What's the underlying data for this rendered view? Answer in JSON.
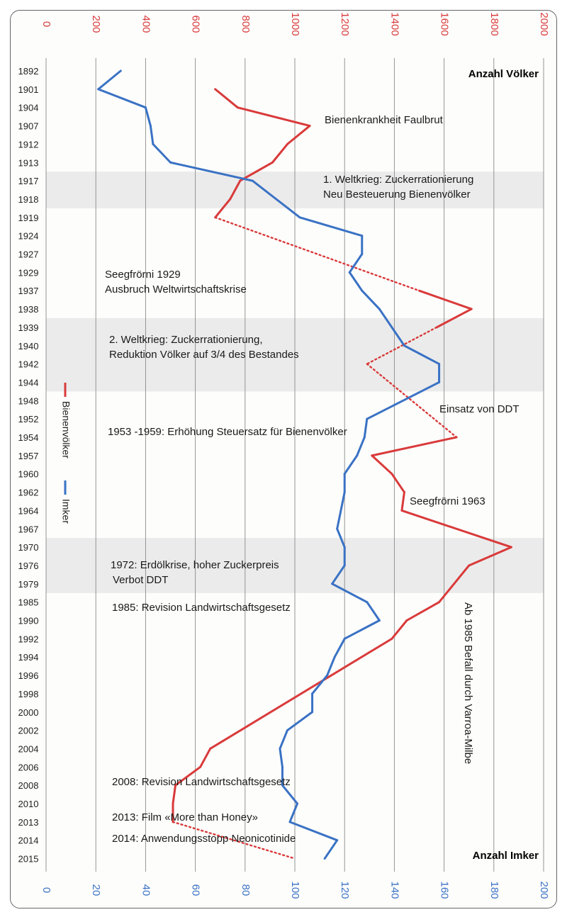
{
  "chart_data": {
    "type": "line",
    "top_axis": {
      "title": "Anzahl Völker",
      "range": [
        0,
        2000
      ],
      "ticks": [
        "0",
        "200",
        "400",
        "600",
        "800",
        "1000",
        "1200",
        "1400",
        "1600",
        "1800",
        "2000"
      ]
    },
    "bottom_axis": {
      "title": "Anzahl Imker",
      "range": [
        0,
        200
      ],
      "ticks": [
        "0",
        "20",
        "40",
        "60",
        "80",
        "100",
        "120",
        "140",
        "160",
        "180",
        "200"
      ]
    },
    "years": [
      "1892",
      "1901",
      "1904",
      "1907",
      "1912",
      "1913",
      "1917",
      "1918",
      "1919",
      "1924",
      "1927",
      "1929",
      "1937",
      "1938",
      "1939",
      "1940",
      "1942",
      "1944",
      "1948",
      "1952",
      "1954",
      "1957",
      "1960",
      "1962",
      "1964",
      "1967",
      "1970",
      "1976",
      "1979",
      "1985",
      "1990",
      "1992",
      "1994",
      "1996",
      "1998",
      "2000",
      "2002",
      "2004",
      "2006",
      "2008",
      "2010",
      "2013",
      "2014",
      "2015"
    ],
    "series": [
      {
        "name": "Bienenvölker",
        "axis": "top",
        "color": "#d93a3a",
        "values": [
          null,
          680,
          770,
          1060,
          970,
          910,
          780,
          740,
          680,
          null,
          null,
          null,
          1500,
          1710,
          1570,
          null,
          1290,
          null,
          null,
          null,
          1650,
          1310,
          1390,
          1440,
          1430,
          null,
          1870,
          1700,
          null,
          1580,
          1450,
          1390,
          null,
          null,
          null,
          null,
          null,
          660,
          620,
          520,
          510,
          510,
          null,
          1000
        ],
        "dotted_segments": [
          [
            8,
            12
          ],
          [
            14,
            16
          ],
          [
            16,
            20
          ],
          [
            41,
            43
          ]
        ]
      },
      {
        "name": "Imker",
        "axis": "bottom",
        "color": "#3a72c4",
        "values": [
          30,
          21,
          40,
          42,
          43,
          50,
          83,
          null,
          102,
          127,
          127,
          122,
          127,
          134,
          null,
          144,
          158,
          158,
          null,
          129,
          128,
          125,
          120,
          120,
          null,
          117,
          120,
          120,
          115,
          129,
          134,
          120,
          116,
          113,
          107,
          107,
          97,
          94,
          95,
          95,
          101,
          98,
          117,
          112
        ]
      }
    ],
    "legend": {
      "placement": "left",
      "items": [
        "Bienenvölker",
        "Imker"
      ]
    },
    "bands": [
      {
        "from": "1917",
        "to": "1918"
      },
      {
        "from": "1939",
        "to": "1944"
      },
      {
        "from": "1970",
        "to": "1979"
      }
    ],
    "annotations": [
      {
        "lines": [
          "Bienenkrankheit Faulbrut"
        ]
      },
      {
        "lines": [
          "1. Weltkrieg: Zuckerrationierung",
          "Neu Besteuerung Bienenvölker"
        ]
      },
      {
        "lines": [
          "Seegfrörni 1929",
          "Ausbruch Weltwirtschaftskrise"
        ]
      },
      {
        "lines": [
          "2. Weltkrieg: Zuckerrationierung,",
          "Reduktion Völker auf 3/4 des Bestandes"
        ]
      },
      {
        "lines": [
          "Einsatz von DDT"
        ]
      },
      {
        "lines": [
          "1953 -1959: Erhöhung Steuersatz für Bienenvölker"
        ]
      },
      {
        "lines": [
          "Seegfrörni 1963"
        ]
      },
      {
        "lines": [
          "1972: Erdölkrise, hoher Zuckerpreis",
          "Verbot DDT"
        ]
      },
      {
        "lines": [
          "1985: Revision Landwirtschaftsgesetz"
        ]
      },
      {
        "lines": [
          "Ab 1985 Befall durch Varroa-Milbe"
        ]
      },
      {
        "lines": [
          "2008: Revision Landwirtschaftsgesetz"
        ]
      },
      {
        "lines": [
          "2013: Film «More than Honey»"
        ]
      },
      {
        "lines": [
          "2014: Anwendungsstopp Neonicotinide"
        ]
      }
    ]
  }
}
